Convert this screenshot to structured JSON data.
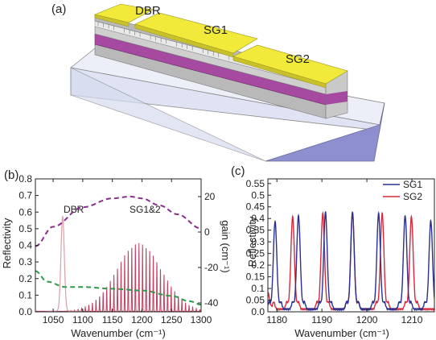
{
  "panel_a": {
    "label": "(a)",
    "labels": {
      "dbr": "DBR",
      "sg1": "SG1",
      "sg2": "SG2"
    },
    "colors": {
      "electrode": "#f2ea3a",
      "waveguide_core": "#a64aa1",
      "cladding": "#bdbdbd",
      "substrate_top": "#eceff8",
      "substrate_side": "#8d8fd0"
    }
  },
  "chart_data": [
    {
      "type": "line",
      "panel_label": "(b)",
      "xlabel": "Wavenumber (cm⁻¹)",
      "ylabel": "Reflectivity",
      "y2label": "gain (cm⁻¹)",
      "xlim": [
        1020,
        1300
      ],
      "ylim": [
        0,
        0.8
      ],
      "y2lim": [
        -45,
        30
      ],
      "xticks": [
        1050,
        1100,
        1150,
        1200,
        1250,
        1300
      ],
      "yticks": [
        0.0,
        0.1,
        0.2,
        0.3,
        0.4,
        0.5,
        0.6,
        0.7,
        0.8
      ],
      "y2ticks": [
        -40,
        -20,
        0,
        20
      ],
      "annotations": [
        "DBR",
        "SG1&2"
      ],
      "series": [
        {
          "role": "dbr_reflectivity",
          "color": "#d8a0a8",
          "peak_x": 1066,
          "peak_y": 0.57,
          "width": 4
        },
        {
          "role": "sg_reflectivity",
          "color": "#c04060",
          "center_x": 1195,
          "peak_y": 0.41,
          "comb_spacing": 6.05,
          "envelope_width": 62
        },
        {
          "role": "gain_purple_dashed",
          "axis": "right",
          "color": "#8a2e8e",
          "x": [
            1020,
            1050,
            1100,
            1150,
            1180,
            1200,
            1230,
            1260,
            1300
          ],
          "y": [
            -8,
            3,
            14,
            19,
            20,
            19,
            15,
            10,
            2
          ]
        },
        {
          "role": "gain_green_dashed",
          "axis": "right",
          "color": "#2e9a4a",
          "x": [
            1020,
            1040,
            1070,
            1100,
            1150,
            1200,
            1250,
            1280,
            1300
          ],
          "y": [
            -22,
            -28,
            -31,
            -31,
            -32,
            -33,
            -36,
            -39,
            -41
          ]
        }
      ]
    },
    {
      "type": "line",
      "panel_label": "(c)",
      "xlabel": "Wavenumber (cm⁻¹)",
      "ylabel": "Reflectivity",
      "xlim": [
        1178,
        1215
      ],
      "ylim": [
        0,
        0.57
      ],
      "xticks": [
        1180,
        1190,
        1200,
        1210
      ],
      "yticks": [
        0.0,
        0.05,
        0.1,
        0.15,
        0.2,
        0.25,
        0.3,
        0.35,
        0.4,
        0.45,
        0.5,
        0.55
      ],
      "legend_position": "top-right",
      "series": [
        {
          "name": "SG1",
          "color": "#2b2f8f",
          "peaks": [
            [
              1179.6,
              0.375
            ],
            [
              1184.8,
              0.4
            ],
            [
              1190.8,
              0.415
            ],
            [
              1196.8,
              0.415
            ],
            [
              1202.6,
              0.41
            ],
            [
              1208.5,
              0.4
            ],
            [
              1214.2,
              0.378
            ]
          ]
        },
        {
          "name": "SG2",
          "color": "#d8283c",
          "peaks": [
            [
              1178.0,
              0.07
            ],
            [
              1183.5,
              0.395
            ],
            [
              1190.2,
              0.41
            ],
            [
              1196.8,
              0.415
            ],
            [
              1203.4,
              0.41
            ],
            [
              1209.9,
              0.395
            ]
          ]
        }
      ]
    }
  ]
}
